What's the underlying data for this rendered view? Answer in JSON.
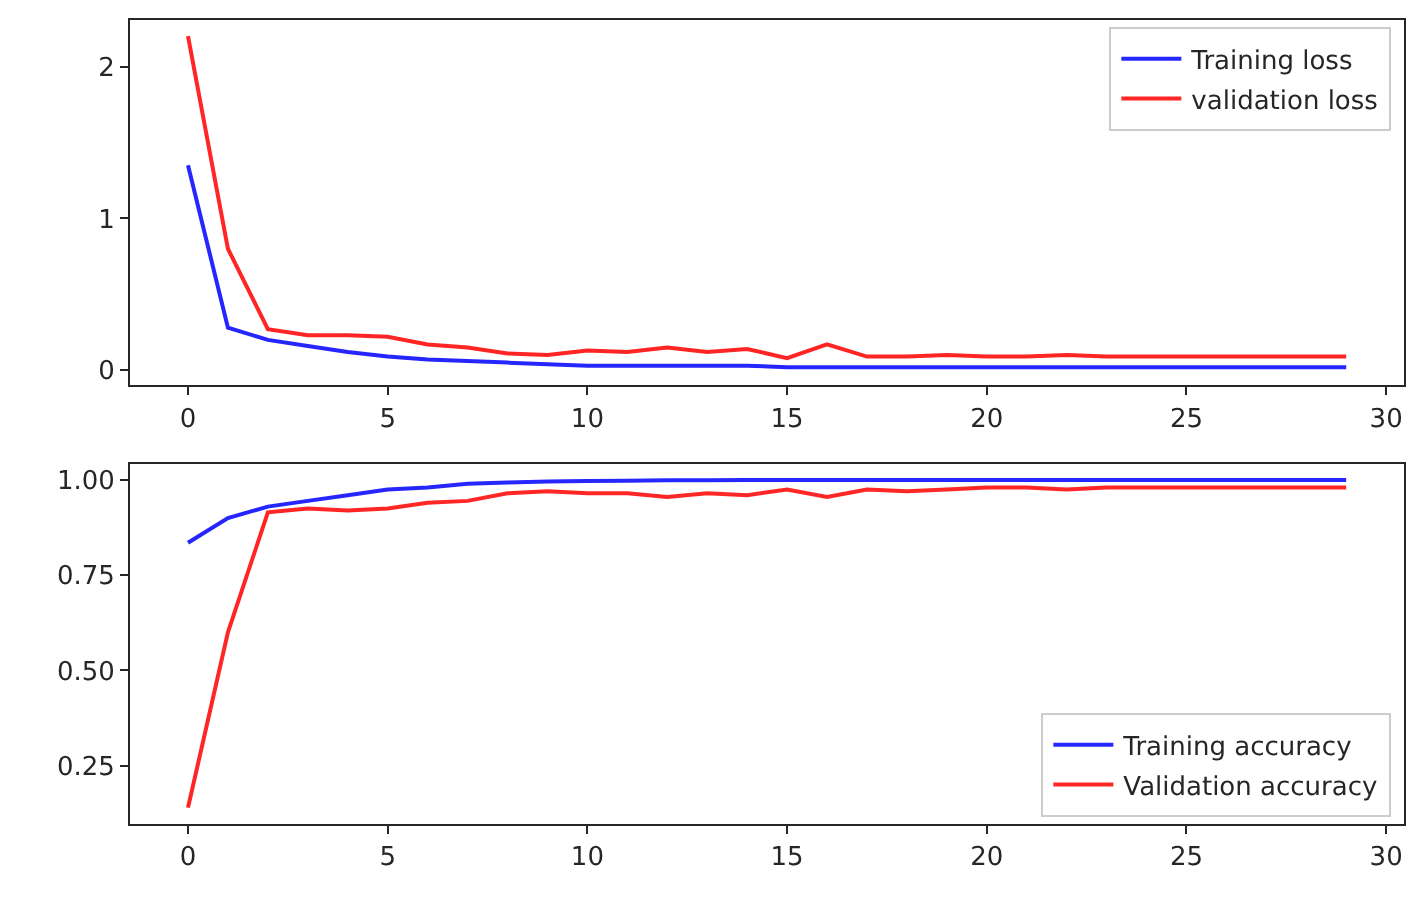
{
  "chart_data": [
    {
      "type": "line",
      "x": [
        0,
        1,
        2,
        3,
        4,
        5,
        6,
        7,
        8,
        9,
        10,
        11,
        12,
        13,
        14,
        15,
        16,
        17,
        18,
        19,
        20,
        21,
        22,
        23,
        24,
        25,
        26,
        27,
        28,
        29
      ],
      "xlim": [
        -1.45,
        30.45
      ],
      "xticks": [
        0,
        5,
        10,
        15,
        20,
        25,
        30
      ],
      "ylim": [
        -0.1,
        2.31
      ],
      "yticks": [
        0,
        1,
        2
      ],
      "legend": "top right",
      "series": [
        {
          "name": "Training loss",
          "color": "#0000ff",
          "values": [
            1.35,
            0.28,
            0.2,
            0.16,
            0.12,
            0.09,
            0.07,
            0.06,
            0.05,
            0.04,
            0.03,
            0.03,
            0.03,
            0.03,
            0.03,
            0.02,
            0.02,
            0.02,
            0.02,
            0.02,
            0.02,
            0.02,
            0.02,
            0.02,
            0.02,
            0.02,
            0.02,
            0.02,
            0.02,
            0.02
          ]
        },
        {
          "name": "validation loss",
          "color": "#ff0000",
          "values": [
            2.2,
            0.8,
            0.27,
            0.23,
            0.23,
            0.22,
            0.17,
            0.15,
            0.11,
            0.1,
            0.13,
            0.12,
            0.15,
            0.12,
            0.14,
            0.08,
            0.17,
            0.09,
            0.09,
            0.1,
            0.09,
            0.09,
            0.1,
            0.09,
            0.09,
            0.09,
            0.09,
            0.09,
            0.09,
            0.09
          ]
        }
      ]
    },
    {
      "type": "line",
      "x": [
        0,
        1,
        2,
        3,
        4,
        5,
        6,
        7,
        8,
        9,
        10,
        11,
        12,
        13,
        14,
        15,
        16,
        17,
        18,
        19,
        20,
        21,
        22,
        23,
        24,
        25,
        26,
        27,
        28,
        29
      ],
      "xlim": [
        -1.45,
        30.45
      ],
      "xticks": [
        0,
        5,
        10,
        15,
        20,
        25,
        30
      ],
      "ylim": [
        0.097,
        1.043
      ],
      "yticks": [
        {
          "value": 0.25,
          "label": "0.25"
        },
        {
          "value": 0.5,
          "label": "0.50"
        },
        {
          "value": 0.75,
          "label": "0.75"
        },
        {
          "value": 1.0,
          "label": "1.00"
        }
      ],
      "legend": "bottom right",
      "series": [
        {
          "name": "Training accuracy",
          "color": "#0000ff",
          "values": [
            0.835,
            0.9,
            0.93,
            0.945,
            0.96,
            0.975,
            0.98,
            0.99,
            0.993,
            0.996,
            0.997,
            0.998,
            0.999,
            0.999,
            1.0,
            1.0,
            1.0,
            1.0,
            1.0,
            1.0,
            1.0,
            1.0,
            1.0,
            1.0,
            1.0,
            1.0,
            1.0,
            1.0,
            1.0,
            1.0
          ]
        },
        {
          "name": "Validation accuracy",
          "color": "#ff0000",
          "values": [
            0.14,
            0.6,
            0.915,
            0.925,
            0.92,
            0.925,
            0.94,
            0.945,
            0.965,
            0.97,
            0.965,
            0.965,
            0.955,
            0.965,
            0.96,
            0.975,
            0.955,
            0.975,
            0.97,
            0.975,
            0.98,
            0.98,
            0.975,
            0.98,
            0.98,
            0.98,
            0.98,
            0.98,
            0.98,
            0.98
          ]
        }
      ]
    }
  ]
}
